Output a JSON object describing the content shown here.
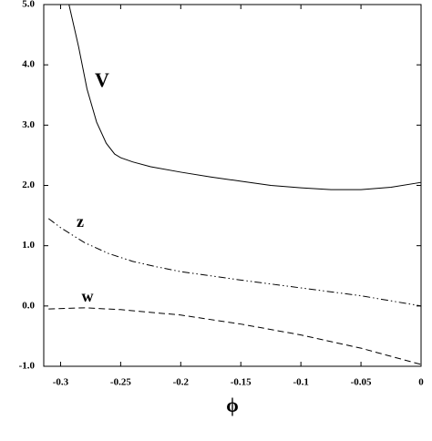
{
  "chart_data": {
    "type": "line",
    "xlabel": "ϕ",
    "xlim": [
      -0.314,
      0
    ],
    "ylim": [
      -1,
      5
    ],
    "xticks": [
      -0.3,
      -0.25,
      -0.2,
      -0.15,
      -0.1,
      -0.05,
      0
    ],
    "yticks": [
      {
        "value": -1,
        "label": "-1.0"
      },
      {
        "value": 0,
        "label": "0.0"
      },
      {
        "value": 1,
        "label": "1.0"
      },
      {
        "value": 2,
        "label": "2.0"
      },
      {
        "value": 3,
        "label": "3.0"
      },
      {
        "value": 4,
        "label": "4.0"
      },
      {
        "value": 5,
        "label": "5.0"
      }
    ],
    "series": [
      {
        "name": "V",
        "color": "#000000",
        "style": "solid",
        "x": [
          -0.293,
          -0.285,
          -0.278,
          -0.27,
          -0.262,
          -0.255,
          -0.25,
          -0.24,
          -0.225,
          -0.2,
          -0.175,
          -0.15,
          -0.125,
          -0.1,
          -0.075,
          -0.05,
          -0.025,
          0
        ],
        "values": [
          5.0,
          4.3,
          3.6,
          3.05,
          2.7,
          2.52,
          2.46,
          2.39,
          2.31,
          2.22,
          2.14,
          2.07,
          2.0,
          1.96,
          1.93,
          1.93,
          1.97,
          2.05
        ]
      },
      {
        "name": "z",
        "color": "#000000",
        "style": "dashdotdot",
        "x": [
          -0.31,
          -0.3,
          -0.28,
          -0.26,
          -0.24,
          -0.22,
          -0.2,
          -0.15,
          -0.1,
          -0.05,
          0
        ],
        "values": [
          1.45,
          1.3,
          1.05,
          0.87,
          0.74,
          0.65,
          0.57,
          0.43,
          0.3,
          0.17,
          0.0
        ]
      },
      {
        "name": "w",
        "color": "#000000",
        "style": "dashed",
        "x": [
          -0.31,
          -0.28,
          -0.25,
          -0.2,
          -0.15,
          -0.1,
          -0.05,
          0
        ],
        "values": [
          -0.05,
          -0.03,
          -0.06,
          -0.15,
          -0.3,
          -0.48,
          -0.7,
          -0.97
        ]
      }
    ]
  }
}
